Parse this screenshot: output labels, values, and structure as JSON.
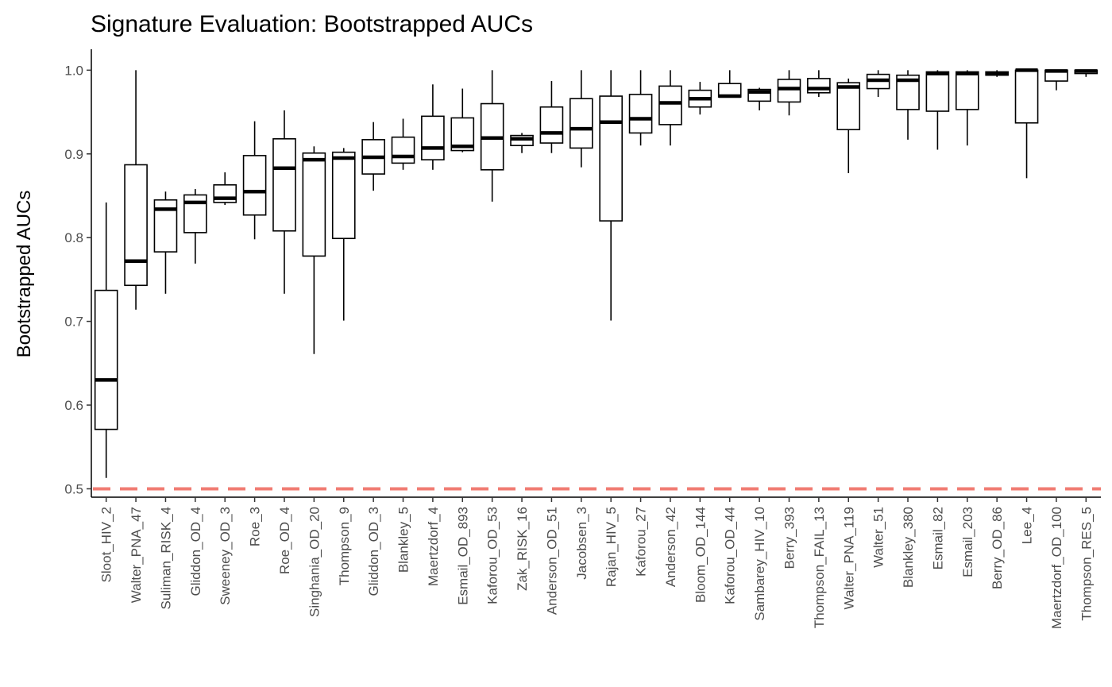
{
  "chart_data": {
    "type": "boxplot",
    "title": "Signature Evaluation: Bootstrapped AUCs",
    "xlabel": "",
    "ylabel": "Bootstrapped AUCs",
    "ylim": [
      0.49,
      1.025
    ],
    "yticks": [
      0.5,
      0.6,
      0.7,
      0.8,
      0.9,
      1.0
    ],
    "ytick_labels": [
      "0.5",
      "0.6",
      "0.7",
      "0.8",
      "0.9",
      "1.0"
    ],
    "grid": false,
    "legend": "none",
    "reference_line": {
      "y": 0.5,
      "style": "dashed",
      "color": "#f07b72"
    },
    "box_color": "#000000",
    "box_fill": "#ffffff",
    "categories": [
      "Sloot_HIV_2",
      "Walter_PNA_47",
      "Suliman_RISK_4",
      "Gliddon_OD_4",
      "Sweeney_OD_3",
      "Roe_3",
      "Roe_OD_4",
      "Singhania_OD_20",
      "Thompson_9",
      "Gliddon_OD_3",
      "Blankley_5",
      "Maertzdorf_4",
      "Esmail_OD_893",
      "Kaforou_OD_53",
      "Zak_RISK_16",
      "Anderson_OD_51",
      "Jacobsen_3",
      "Rajan_HIV_5",
      "Kaforou_27",
      "Anderson_42",
      "Bloom_OD_144",
      "Kaforou_OD_44",
      "Sambarey_HIV_10",
      "Berry_393",
      "Thompson_FAIL_13",
      "Walter_PNA_119",
      "Walter_51",
      "Blankley_380",
      "Esmail_82",
      "Esmail_203",
      "Berry_OD_86",
      "Lee_4",
      "Maertzdorf_OD_100",
      "Thompson_RES_5"
    ],
    "boxes": [
      {
        "min": 0.513,
        "q1": 0.571,
        "median": 0.63,
        "q3": 0.737,
        "max": 0.842
      },
      {
        "min": 0.714,
        "q1": 0.743,
        "median": 0.772,
        "q3": 0.887,
        "max": 1.0
      },
      {
        "min": 0.733,
        "q1": 0.783,
        "median": 0.834,
        "q3": 0.845,
        "max": 0.855
      },
      {
        "min": 0.769,
        "q1": 0.806,
        "median": 0.842,
        "q3": 0.851,
        "max": 0.858
      },
      {
        "min": 0.839,
        "q1": 0.842,
        "median": 0.847,
        "q3": 0.863,
        "max": 0.878
      },
      {
        "min": 0.798,
        "q1": 0.827,
        "median": 0.855,
        "q3": 0.898,
        "max": 0.939
      },
      {
        "min": 0.733,
        "q1": 0.808,
        "median": 0.883,
        "q3": 0.918,
        "max": 0.952
      },
      {
        "min": 0.661,
        "q1": 0.778,
        "median": 0.893,
        "q3": 0.901,
        "max": 0.909
      },
      {
        "min": 0.701,
        "q1": 0.799,
        "median": 0.895,
        "q3": 0.902,
        "max": 0.907
      },
      {
        "min": 0.856,
        "q1": 0.876,
        "median": 0.896,
        "q3": 0.917,
        "max": 0.938
      },
      {
        "min": 0.881,
        "q1": 0.889,
        "median": 0.897,
        "q3": 0.92,
        "max": 0.942
      },
      {
        "min": 0.881,
        "q1": 0.893,
        "median": 0.907,
        "q3": 0.945,
        "max": 0.983
      },
      {
        "min": 0.902,
        "q1": 0.904,
        "median": 0.909,
        "q3": 0.943,
        "max": 0.978
      },
      {
        "min": 0.843,
        "q1": 0.881,
        "median": 0.919,
        "q3": 0.96,
        "max": 1.0
      },
      {
        "min": 0.901,
        "q1": 0.91,
        "median": 0.918,
        "q3": 0.922,
        "max": 0.925
      },
      {
        "min": 0.901,
        "q1": 0.913,
        "median": 0.925,
        "q3": 0.956,
        "max": 0.987
      },
      {
        "min": 0.884,
        "q1": 0.907,
        "median": 0.93,
        "q3": 0.966,
        "max": 1.0
      },
      {
        "min": 0.701,
        "q1": 0.82,
        "median": 0.938,
        "q3": 0.969,
        "max": 1.0
      },
      {
        "min": 0.91,
        "q1": 0.925,
        "median": 0.942,
        "q3": 0.971,
        "max": 1.0
      },
      {
        "min": 0.91,
        "q1": 0.935,
        "median": 0.961,
        "q3": 0.981,
        "max": 1.0
      },
      {
        "min": 0.947,
        "q1": 0.956,
        "median": 0.966,
        "q3": 0.976,
        "max": 0.986
      },
      {
        "min": 0.968,
        "q1": 0.968,
        "median": 0.969,
        "q3": 0.984,
        "max": 1.0
      },
      {
        "min": 0.952,
        "q1": 0.963,
        "median": 0.974,
        "q3": 0.977,
        "max": 0.979
      },
      {
        "min": 0.946,
        "q1": 0.962,
        "median": 0.978,
        "q3": 0.989,
        "max": 1.0
      },
      {
        "min": 0.968,
        "q1": 0.973,
        "median": 0.978,
        "q3": 0.99,
        "max": 1.0
      },
      {
        "min": 0.877,
        "q1": 0.929,
        "median": 0.98,
        "q3": 0.985,
        "max": 0.99
      },
      {
        "min": 0.968,
        "q1": 0.978,
        "median": 0.988,
        "q3": 0.995,
        "max": 1.0
      },
      {
        "min": 0.917,
        "q1": 0.953,
        "median": 0.988,
        "q3": 0.994,
        "max": 1.0
      },
      {
        "min": 0.905,
        "q1": 0.951,
        "median": 0.996,
        "q3": 0.998,
        "max": 1.0
      },
      {
        "min": 0.91,
        "q1": 0.953,
        "median": 0.996,
        "q3": 0.998,
        "max": 1.0
      },
      {
        "min": 0.992,
        "q1": 0.994,
        "median": 0.996,
        "q3": 0.998,
        "max": 1.0
      },
      {
        "min": 0.871,
        "q1": 0.937,
        "median": 1.0,
        "q3": 1.0,
        "max": 1.0
      },
      {
        "min": 0.976,
        "q1": 0.987,
        "median": 0.999,
        "q3": 1.0,
        "max": 1.0
      },
      {
        "min": 0.992,
        "q1": 0.996,
        "median": 0.999,
        "q3": 1.0,
        "max": 1.0
      }
    ]
  }
}
